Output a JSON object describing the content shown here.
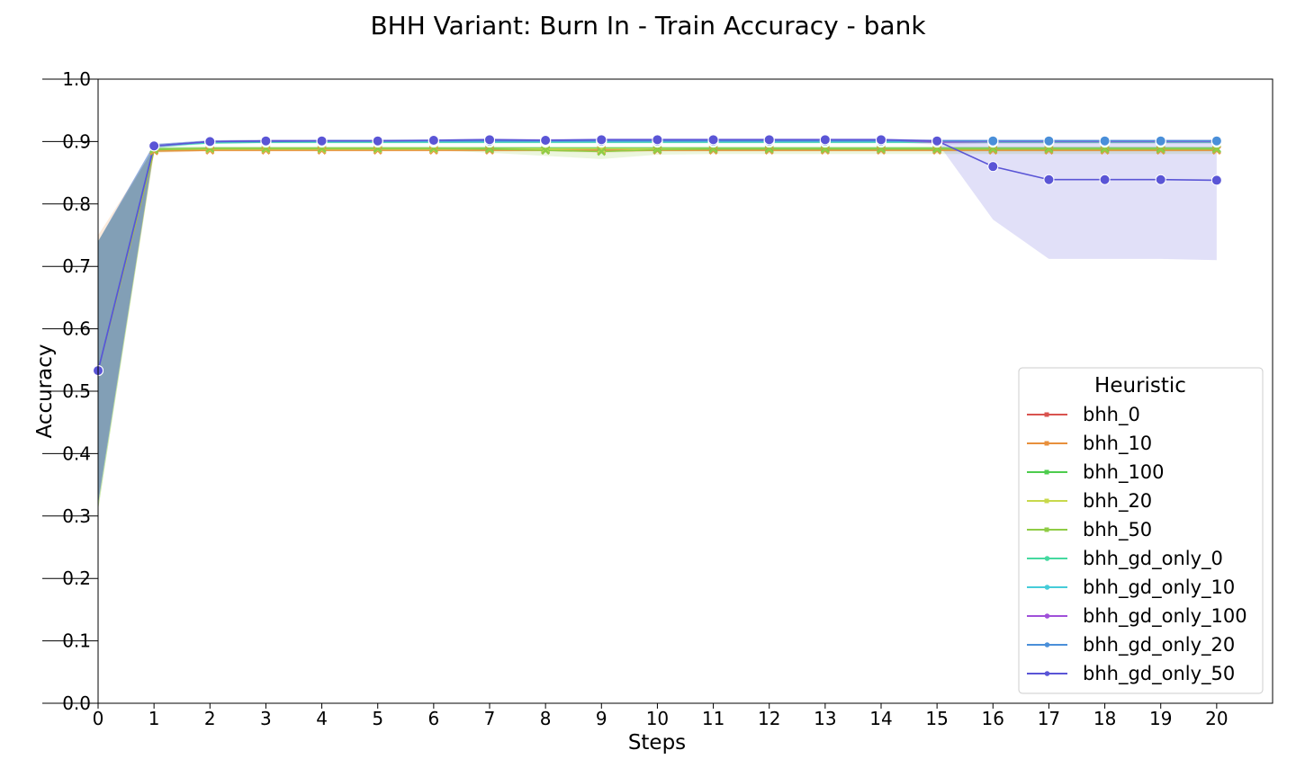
{
  "chart_data": {
    "type": "line",
    "title": "BHH Variant: Burn In - Train Accuracy - bank",
    "xlabel": "Steps",
    "ylabel": "Accuracy",
    "x": [
      0,
      1,
      2,
      3,
      4,
      5,
      6,
      7,
      8,
      9,
      10,
      11,
      12,
      13,
      14,
      15,
      16,
      17,
      18,
      19,
      20
    ],
    "xlim": [
      0,
      21
    ],
    "ylim": [
      0.0,
      1.0
    ],
    "xticks": [
      "0",
      "1",
      "2",
      "3",
      "4",
      "5",
      "6",
      "7",
      "8",
      "9",
      "10",
      "11",
      "12",
      "13",
      "14",
      "15",
      "16",
      "17",
      "18",
      "19",
      "20"
    ],
    "yticks": [
      "0.0",
      "0.1",
      "0.2",
      "0.3",
      "0.4",
      "0.5",
      "0.6",
      "0.7",
      "0.8",
      "0.9",
      "1.0"
    ],
    "grid": false,
    "legend": {
      "title": "Heuristic",
      "position": "lower-right"
    },
    "series": [
      {
        "name": "bhh_0",
        "color": "#d9534f",
        "marker": "x",
        "values": [
          0.533,
          0.886,
          0.887,
          0.887,
          0.887,
          0.887,
          0.887,
          0.887,
          0.887,
          0.887,
          0.887,
          0.887,
          0.887,
          0.887,
          0.887,
          0.887,
          0.887,
          0.887,
          0.887,
          0.887,
          0.887
        ],
        "band": [
          [
            0.33,
            0.74
          ],
          [
            0.883,
            0.889
          ],
          [
            0.885,
            0.889
          ],
          [
            0.885,
            0.889
          ],
          [
            0.885,
            0.889
          ],
          [
            0.885,
            0.889
          ],
          [
            0.885,
            0.889
          ],
          [
            0.885,
            0.889
          ],
          [
            0.885,
            0.889
          ],
          [
            0.885,
            0.889
          ],
          [
            0.885,
            0.889
          ],
          [
            0.885,
            0.889
          ],
          [
            0.885,
            0.889
          ],
          [
            0.885,
            0.889
          ],
          [
            0.885,
            0.889
          ],
          [
            0.885,
            0.889
          ],
          [
            0.885,
            0.889
          ],
          [
            0.885,
            0.889
          ],
          [
            0.885,
            0.889
          ],
          [
            0.885,
            0.889
          ],
          [
            0.885,
            0.889
          ]
        ]
      },
      {
        "name": "bhh_10",
        "color": "#e8903c",
        "marker": "x",
        "values": [
          0.533,
          0.885,
          0.886,
          0.886,
          0.886,
          0.886,
          0.886,
          0.886,
          0.886,
          0.885,
          0.886,
          0.886,
          0.886,
          0.886,
          0.886,
          0.886,
          0.886,
          0.886,
          0.886,
          0.886,
          0.886
        ],
        "band": [
          [
            0.32,
            0.75
          ],
          [
            0.882,
            0.888
          ],
          [
            0.884,
            0.888
          ],
          [
            0.884,
            0.888
          ],
          [
            0.884,
            0.888
          ],
          [
            0.884,
            0.888
          ],
          [
            0.884,
            0.888
          ],
          [
            0.884,
            0.888
          ],
          [
            0.884,
            0.888
          ],
          [
            0.882,
            0.888
          ],
          [
            0.884,
            0.888
          ],
          [
            0.884,
            0.888
          ],
          [
            0.884,
            0.888
          ],
          [
            0.884,
            0.888
          ],
          [
            0.884,
            0.888
          ],
          [
            0.884,
            0.888
          ],
          [
            0.884,
            0.888
          ],
          [
            0.884,
            0.888
          ],
          [
            0.884,
            0.888
          ],
          [
            0.884,
            0.888
          ],
          [
            0.884,
            0.888
          ]
        ]
      },
      {
        "name": "bhh_100",
        "color": "#4dcc4d",
        "marker": "x",
        "values": [
          0.533,
          0.888,
          0.889,
          0.889,
          0.889,
          0.889,
          0.889,
          0.889,
          0.889,
          0.889,
          0.889,
          0.889,
          0.889,
          0.889,
          0.889,
          0.889,
          0.889,
          0.889,
          0.889,
          0.889,
          0.889
        ],
        "band": [
          [
            0.31,
            0.74
          ],
          [
            0.884,
            0.891
          ],
          [
            0.886,
            0.892
          ],
          [
            0.886,
            0.892
          ],
          [
            0.886,
            0.892
          ],
          [
            0.886,
            0.892
          ],
          [
            0.886,
            0.892
          ],
          [
            0.886,
            0.892
          ],
          [
            0.886,
            0.892
          ],
          [
            0.886,
            0.892
          ],
          [
            0.886,
            0.892
          ],
          [
            0.886,
            0.892
          ],
          [
            0.886,
            0.892
          ],
          [
            0.886,
            0.892
          ],
          [
            0.886,
            0.892
          ],
          [
            0.886,
            0.892
          ],
          [
            0.886,
            0.892
          ],
          [
            0.886,
            0.892
          ],
          [
            0.886,
            0.892
          ],
          [
            0.886,
            0.892
          ],
          [
            0.886,
            0.892
          ]
        ]
      },
      {
        "name": "bhh_20",
        "color": "#c8d94c",
        "marker": "x",
        "values": [
          0.533,
          0.887,
          0.888,
          0.888,
          0.888,
          0.888,
          0.888,
          0.888,
          0.888,
          0.888,
          0.888,
          0.888,
          0.888,
          0.888,
          0.888,
          0.888,
          0.888,
          0.888,
          0.888,
          0.888,
          0.888
        ],
        "band": [
          [
            0.31,
            0.74
          ],
          [
            0.883,
            0.89
          ],
          [
            0.885,
            0.891
          ],
          [
            0.885,
            0.891
          ],
          [
            0.885,
            0.891
          ],
          [
            0.885,
            0.891
          ],
          [
            0.885,
            0.891
          ],
          [
            0.885,
            0.891
          ],
          [
            0.885,
            0.891
          ],
          [
            0.885,
            0.891
          ],
          [
            0.885,
            0.891
          ],
          [
            0.885,
            0.891
          ],
          [
            0.885,
            0.891
          ],
          [
            0.885,
            0.891
          ],
          [
            0.885,
            0.891
          ],
          [
            0.885,
            0.891
          ],
          [
            0.885,
            0.891
          ],
          [
            0.885,
            0.891
          ],
          [
            0.885,
            0.891
          ],
          [
            0.885,
            0.891
          ],
          [
            0.885,
            0.891
          ]
        ]
      },
      {
        "name": "bhh_50",
        "color": "#8fcc45",
        "marker": "x",
        "values": [
          0.533,
          0.887,
          0.889,
          0.889,
          0.889,
          0.889,
          0.889,
          0.888,
          0.886,
          0.884,
          0.887,
          0.888,
          0.888,
          0.888,
          0.888,
          0.888,
          0.888,
          0.888,
          0.888,
          0.888,
          0.888
        ],
        "band": [
          [
            0.31,
            0.74
          ],
          [
            0.883,
            0.891
          ],
          [
            0.886,
            0.892
          ],
          [
            0.886,
            0.892
          ],
          [
            0.886,
            0.892
          ],
          [
            0.886,
            0.892
          ],
          [
            0.886,
            0.892
          ],
          [
            0.882,
            0.892
          ],
          [
            0.877,
            0.892
          ],
          [
            0.872,
            0.892
          ],
          [
            0.879,
            0.892
          ],
          [
            0.88,
            0.892
          ],
          [
            0.88,
            0.892
          ],
          [
            0.88,
            0.892
          ],
          [
            0.88,
            0.892
          ],
          [
            0.88,
            0.892
          ],
          [
            0.88,
            0.892
          ],
          [
            0.88,
            0.892
          ],
          [
            0.88,
            0.892
          ],
          [
            0.88,
            0.892
          ],
          [
            0.88,
            0.892
          ]
        ]
      },
      {
        "name": "bhh_gd_only_0",
        "color": "#45d9a0",
        "marker": "o",
        "values": [
          0.533,
          0.893,
          0.898,
          0.899,
          0.899,
          0.899,
          0.899,
          0.899,
          0.899,
          0.899,
          0.899,
          0.899,
          0.899,
          0.899,
          0.899,
          0.899,
          0.899,
          0.899,
          0.899,
          0.899,
          0.899
        ],
        "band": [
          [
            0.32,
            0.74
          ],
          [
            0.89,
            0.896
          ],
          [
            0.896,
            0.901
          ],
          [
            0.897,
            0.902
          ],
          [
            0.897,
            0.902
          ],
          [
            0.897,
            0.902
          ],
          [
            0.897,
            0.902
          ],
          [
            0.897,
            0.902
          ],
          [
            0.897,
            0.902
          ],
          [
            0.897,
            0.902
          ],
          [
            0.897,
            0.902
          ],
          [
            0.897,
            0.902
          ],
          [
            0.897,
            0.902
          ],
          [
            0.897,
            0.902
          ],
          [
            0.897,
            0.902
          ],
          [
            0.897,
            0.902
          ],
          [
            0.897,
            0.902
          ],
          [
            0.897,
            0.902
          ],
          [
            0.897,
            0.902
          ],
          [
            0.897,
            0.902
          ],
          [
            0.897,
            0.902
          ]
        ]
      },
      {
        "name": "bhh_gd_only_10",
        "color": "#45ccd9",
        "marker": "o",
        "values": [
          0.533,
          0.893,
          0.899,
          0.9,
          0.9,
          0.9,
          0.9,
          0.9,
          0.9,
          0.9,
          0.9,
          0.9,
          0.9,
          0.9,
          0.9,
          0.9,
          0.9,
          0.9,
          0.9,
          0.9,
          0.9
        ],
        "band": [
          [
            0.32,
            0.74
          ],
          [
            0.89,
            0.896
          ],
          [
            0.897,
            0.902
          ],
          [
            0.898,
            0.903
          ],
          [
            0.898,
            0.903
          ],
          [
            0.898,
            0.903
          ],
          [
            0.898,
            0.903
          ],
          [
            0.898,
            0.903
          ],
          [
            0.898,
            0.903
          ],
          [
            0.898,
            0.903
          ],
          [
            0.898,
            0.903
          ],
          [
            0.898,
            0.903
          ],
          [
            0.898,
            0.903
          ],
          [
            0.898,
            0.903
          ],
          [
            0.898,
            0.903
          ],
          [
            0.898,
            0.903
          ],
          [
            0.898,
            0.903
          ],
          [
            0.898,
            0.903
          ],
          [
            0.898,
            0.903
          ],
          [
            0.898,
            0.903
          ],
          [
            0.898,
            0.903
          ]
        ]
      },
      {
        "name": "bhh_gd_only_100",
        "color": "#a050d9",
        "marker": "o",
        "values": [
          0.533,
          0.893,
          0.9,
          0.901,
          0.901,
          0.901,
          0.901,
          0.902,
          0.902,
          0.902,
          0.902,
          0.902,
          0.902,
          0.902,
          0.902,
          0.899,
          0.9,
          0.9,
          0.9,
          0.9,
          0.9
        ],
        "band": [
          [
            0.32,
            0.74
          ],
          [
            0.89,
            0.896
          ],
          [
            0.898,
            0.902
          ],
          [
            0.899,
            0.903
          ],
          [
            0.899,
            0.903
          ],
          [
            0.899,
            0.903
          ],
          [
            0.899,
            0.903
          ],
          [
            0.9,
            0.904
          ],
          [
            0.9,
            0.904
          ],
          [
            0.9,
            0.904
          ],
          [
            0.9,
            0.904
          ],
          [
            0.9,
            0.904
          ],
          [
            0.9,
            0.904
          ],
          [
            0.9,
            0.904
          ],
          [
            0.9,
            0.904
          ],
          [
            0.895,
            0.903
          ],
          [
            0.897,
            0.903
          ],
          [
            0.897,
            0.903
          ],
          [
            0.897,
            0.903
          ],
          [
            0.897,
            0.903
          ],
          [
            0.897,
            0.903
          ]
        ]
      },
      {
        "name": "bhh_gd_only_20",
        "color": "#4a8fd9",
        "marker": "o",
        "values": [
          0.533,
          0.893,
          0.9,
          0.9,
          0.901,
          0.901,
          0.901,
          0.901,
          0.901,
          0.901,
          0.901,
          0.901,
          0.901,
          0.901,
          0.901,
          0.901,
          0.901,
          0.901,
          0.901,
          0.901,
          0.901
        ],
        "band": [
          [
            0.32,
            0.74
          ],
          [
            0.89,
            0.896
          ],
          [
            0.898,
            0.902
          ],
          [
            0.898,
            0.902
          ],
          [
            0.899,
            0.903
          ],
          [
            0.899,
            0.903
          ],
          [
            0.899,
            0.903
          ],
          [
            0.899,
            0.903
          ],
          [
            0.899,
            0.903
          ],
          [
            0.899,
            0.903
          ],
          [
            0.899,
            0.903
          ],
          [
            0.899,
            0.903
          ],
          [
            0.899,
            0.903
          ],
          [
            0.899,
            0.903
          ],
          [
            0.899,
            0.903
          ],
          [
            0.899,
            0.903
          ],
          [
            0.899,
            0.903
          ],
          [
            0.899,
            0.903
          ],
          [
            0.899,
            0.903
          ],
          [
            0.899,
            0.903
          ],
          [
            0.899,
            0.903
          ]
        ]
      },
      {
        "name": "bhh_gd_only_50",
        "color": "#5a55d6",
        "marker": "o",
        "values": [
          0.533,
          0.893,
          0.9,
          0.901,
          0.901,
          0.901,
          0.902,
          0.903,
          0.902,
          0.903,
          0.903,
          0.903,
          0.903,
          0.903,
          0.903,
          0.901,
          0.86,
          0.839,
          0.839,
          0.839,
          0.838
        ],
        "band": [
          [
            0.32,
            0.74
          ],
          [
            0.89,
            0.896
          ],
          [
            0.898,
            0.902
          ],
          [
            0.899,
            0.903
          ],
          [
            0.899,
            0.903
          ],
          [
            0.899,
            0.903
          ],
          [
            0.9,
            0.904
          ],
          [
            0.901,
            0.905
          ],
          [
            0.9,
            0.904
          ],
          [
            0.901,
            0.905
          ],
          [
            0.901,
            0.905
          ],
          [
            0.901,
            0.905
          ],
          [
            0.901,
            0.905
          ],
          [
            0.901,
            0.905
          ],
          [
            0.901,
            0.905
          ],
          [
            0.899,
            0.903
          ],
          [
            0.775,
            0.903
          ],
          [
            0.712,
            0.903
          ],
          [
            0.712,
            0.903
          ],
          [
            0.712,
            0.903
          ],
          [
            0.71,
            0.903
          ]
        ]
      }
    ]
  }
}
